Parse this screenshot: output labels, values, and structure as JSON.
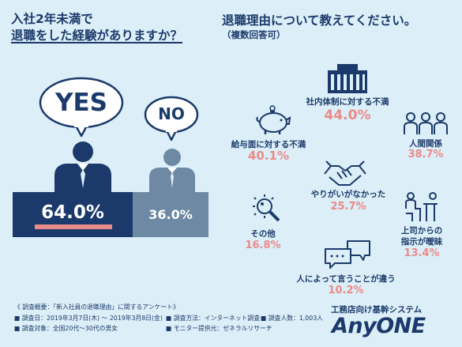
{
  "left": {
    "question_line1": "入社2年未満で",
    "question_line2": "退職をした経験がありますか？",
    "yes_label": "YES",
    "no_label": "NO",
    "yes_percent": "64.0%",
    "no_percent": "36.0%",
    "yes_value": 64.0,
    "no_value": 36.0
  },
  "right": {
    "title": "退職理由について教えてください。",
    "subtitle": "（複数回答可）",
    "reasons": [
      {
        "label": "社内体制に対する不満",
        "percent": "44.0%",
        "icon": "building-icon"
      },
      {
        "label": "給与面に対する不満",
        "percent": "40.1%",
        "icon": "piggy-bank-icon"
      },
      {
        "label": "人間関係",
        "percent": "38.7%",
        "icon": "people-icon"
      },
      {
        "label": "やりがいがなかった",
        "percent": "25.7%",
        "icon": "handshake-icon"
      },
      {
        "label": "その他",
        "percent": "16.8%",
        "icon": "magnifier-icon"
      },
      {
        "label": "上司からの",
        "label2": "指示が曖昧",
        "percent": "13.4%",
        "icon": "meeting-icon"
      },
      {
        "label": "人によって言うことが違う",
        "percent": "10.2%",
        "icon": "speech-bubbles-icon"
      }
    ]
  },
  "footer": {
    "title": "《 調査概要：「新入社員の退職理由」に関するアンケート》",
    "period": "■ 調査日：2019年3月7日(木) ～ 2019年3月8日(金)",
    "method": "■ 調査方法：インターネット調査",
    "count": "■ 調査人数：1,003人",
    "target": "■ 調査対象：全国20代～30代の男女",
    "provider": "■ モニター提供元：ゼネラルリサーチ"
  },
  "brand": {
    "tagline": "工務店向け基幹システム",
    "logo": "AnyONE"
  },
  "colors": {
    "navy": "#1b3a6b",
    "slate": "#6d89a4",
    "coral": "#e98b88",
    "background": "#dceef7"
  }
}
